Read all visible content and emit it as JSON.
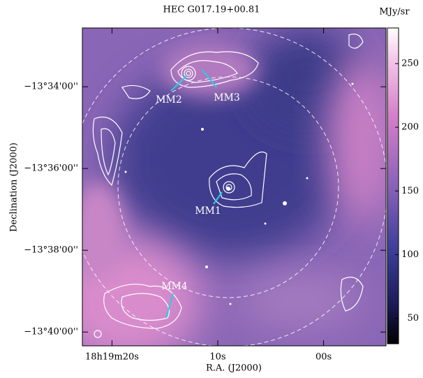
{
  "chart_data": {
    "type": "image",
    "title": "HEC G017.19+00.81",
    "x_label": "R.A. (J2000)",
    "y_label": "Declination (J2000)",
    "colorbar_label": "MJy/sr",
    "xlim": [
      22.8,
      -5.9
    ],
    "xticks": [
      {
        "value": 20,
        "label": "18h19m20s"
      },
      {
        "value": 10,
        "label": "10s"
      },
      {
        "value": 0,
        "label": "00s"
      }
    ],
    "ylim": [
      -13.6723,
      -13.5427
    ],
    "yticks": [
      {
        "value": -13.56667,
        "label": "−13°34'00''"
      },
      {
        "value": -13.6,
        "label": "−13°36'00''"
      },
      {
        "value": -13.63333,
        "label": "−13°38'00''"
      },
      {
        "value": -13.66667,
        "label": "−13°40'00''"
      }
    ],
    "clim": [
      30,
      278
    ],
    "cticks": [
      50,
      100,
      150,
      200,
      250
    ],
    "annotations": [
      "MM1",
      "MM2",
      "MM3",
      "MM4"
    ]
  }
}
